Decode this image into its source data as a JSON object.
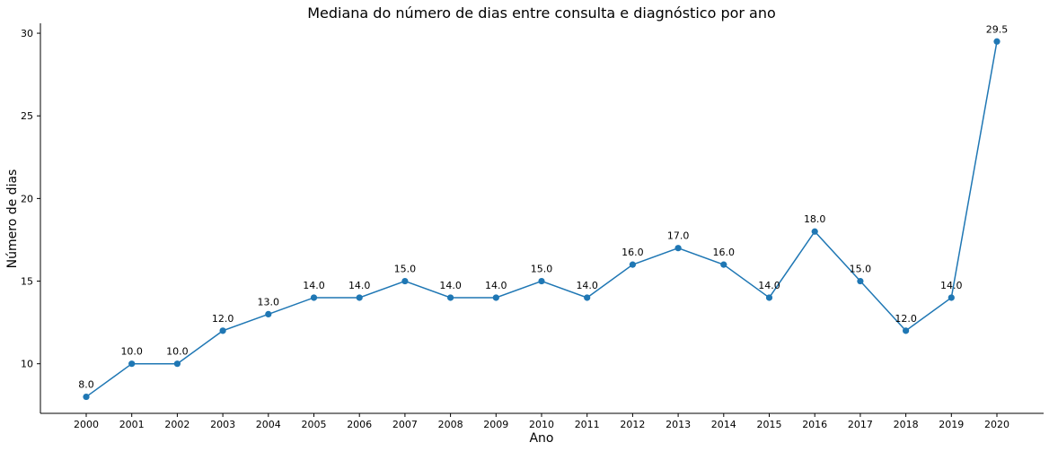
{
  "chart_data": {
    "type": "line",
    "title": "Mediana do número de dias entre consulta e diagnóstico por ano",
    "xlabel": "Ano",
    "ylabel": "Número de dias",
    "categories": [
      "2000",
      "2001",
      "2002",
      "2003",
      "2004",
      "2005",
      "2006",
      "2007",
      "2008",
      "2009",
      "2010",
      "2011",
      "2012",
      "2013",
      "2014",
      "2015",
      "2016",
      "2017",
      "2018",
      "2019",
      "2020"
    ],
    "values": [
      8.0,
      10.0,
      10.0,
      12.0,
      13.0,
      14.0,
      14.0,
      15.0,
      14.0,
      14.0,
      15.0,
      14.0,
      16.0,
      17.0,
      16.0,
      14.0,
      18.0,
      15.0,
      12.0,
      14.0,
      29.5
    ],
    "data_labels": [
      "8.0",
      "10.0",
      "10.0",
      "12.0",
      "13.0",
      "14.0",
      "14.0",
      "15.0",
      "14.0",
      "14.0",
      "15.0",
      "14.0",
      "16.0",
      "17.0",
      "16.0",
      "14.0",
      "18.0",
      "15.0",
      "12.0",
      "14.0",
      "29.5"
    ],
    "yticks": [
      10,
      15,
      20,
      25,
      30
    ],
    "ylim": [
      7.0,
      30.6
    ],
    "grid": false,
    "legend": "none",
    "color": "#1f77b4"
  }
}
